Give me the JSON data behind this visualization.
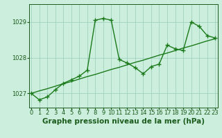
{
  "title": "Graphe pression niveau de la mer (hPa)",
  "x_values": [
    0,
    1,
    2,
    3,
    4,
    5,
    6,
    7,
    8,
    9,
    10,
    11,
    12,
    13,
    14,
    15,
    16,
    17,
    18,
    19,
    20,
    21,
    22,
    23
  ],
  "y_main": [
    1027.0,
    1026.82,
    1026.9,
    1027.1,
    1027.28,
    1027.38,
    1027.48,
    1027.65,
    1029.05,
    1029.1,
    1029.05,
    1027.95,
    1027.85,
    1027.72,
    1027.55,
    1027.75,
    1027.82,
    1028.35,
    1028.25,
    1028.2,
    1029.0,
    1028.88,
    1028.62,
    1028.55
  ],
  "y_trend": [
    1027.0,
    1027.07,
    1027.13,
    1027.2,
    1027.27,
    1027.33,
    1027.4,
    1027.47,
    1027.53,
    1027.6,
    1027.67,
    1027.73,
    1027.8,
    1027.87,
    1027.93,
    1028.0,
    1028.07,
    1028.13,
    1028.2,
    1028.27,
    1028.33,
    1028.4,
    1028.47,
    1028.53
  ],
  "ylim": [
    1026.6,
    1029.5
  ],
  "yticks": [
    1027,
    1028,
    1029
  ],
  "xticks": [
    0,
    1,
    2,
    3,
    4,
    5,
    6,
    7,
    8,
    9,
    10,
    11,
    12,
    13,
    14,
    15,
    16,
    17,
    18,
    19,
    20,
    21,
    22,
    23
  ],
  "line_color": "#1a7a1a",
  "trend_color": "#1a7a1a",
  "bg_color": "#cceedd",
  "grid_color": "#99ccbb",
  "text_color": "#1a5a1a",
  "title_fontsize": 7.5,
  "tick_fontsize": 6.0
}
